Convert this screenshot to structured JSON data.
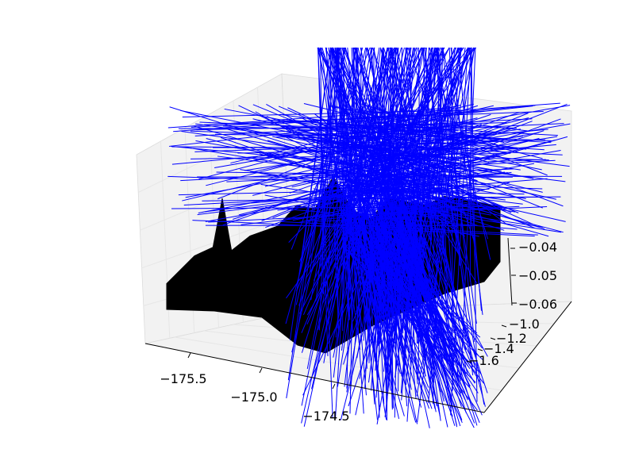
{
  "chart_data": {
    "type": "3d-surface-with-quiver",
    "title": "",
    "xlabel": "",
    "ylabel": "",
    "zlabel": "",
    "x_ticks": [
      "−175.5",
      "−175.0",
      "−174.5"
    ],
    "y_ticks": [
      "−1.0",
      "−1.2",
      "−1.4",
      "−1.6"
    ],
    "z_ticks": [
      "−0.04",
      "−0.05",
      "−0.06"
    ],
    "x_range": [
      -175.8,
      -174.0
    ],
    "y_range": [
      -1.7,
      -0.95
    ],
    "z_range": [
      -0.063,
      -0.035
    ],
    "grid": true,
    "colors": {
      "surface": "#000000",
      "quiver": "#0000ff",
      "pane": "#f2f2f2",
      "grid": "#e6e6e6"
    },
    "surface_profile": {
      "x": [
        -175.8,
        -175.65,
        -175.55,
        -175.5,
        -175.45,
        -175.35,
        -175.2,
        -175.1,
        -175.0,
        -174.9,
        -174.8,
        -174.7,
        -174.6,
        -174.5,
        -174.4,
        -174.3,
        -174.2,
        -174.1,
        -174.0
      ],
      "z": [
        -0.058,
        -0.054,
        -0.053,
        -0.045,
        -0.054,
        -0.052,
        -0.051,
        -0.048,
        -0.049,
        -0.044,
        -0.05,
        -0.052,
        -0.049,
        -0.05,
        -0.051,
        -0.05,
        -0.051,
        -0.052,
        -0.053
      ]
    },
    "quiver_description": "dense field of vectors, many clipped beyond axes"
  }
}
